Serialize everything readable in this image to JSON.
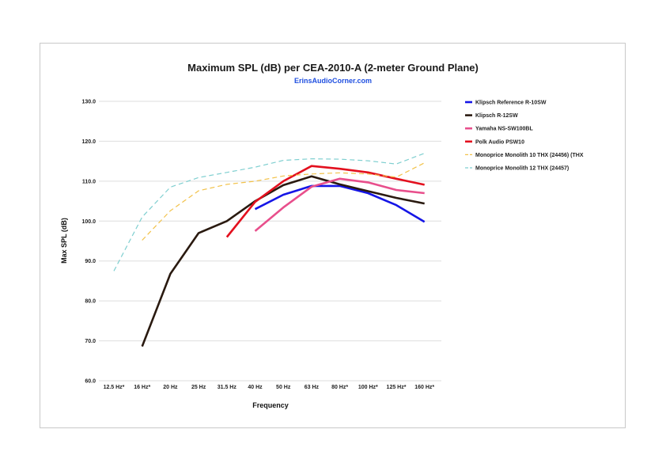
{
  "chart_data": {
    "type": "line",
    "title": "Maximum SPL (dB) per CEA-2010-A (2-meter Ground Plane)",
    "subtitle": "ErinsAudioCorner.com",
    "xlabel": "Frequency",
    "ylabel": "Max SPL (dB)",
    "ylim": [
      60,
      130
    ],
    "yticks": [
      "60.0",
      "70.0",
      "80.0",
      "90.0",
      "100.0",
      "110.0",
      "120.0",
      "130.0"
    ],
    "categories": [
      "12.5 Hz*",
      "16 Hz*",
      "20 Hz",
      "25 Hz",
      "31.5 Hz",
      "40 Hz",
      "50 Hz",
      "63 Hz",
      "80 Hz*",
      "100 Hz*",
      "125 Hz*",
      "160 Hz*"
    ],
    "legend_position": "right",
    "series": [
      {
        "name": "Klipsch Reference R-10SW",
        "color": "#1515e6",
        "dash": false,
        "values": [
          null,
          null,
          null,
          null,
          null,
          103.0,
          106.6,
          108.8,
          108.8,
          107.0,
          104.0,
          99.8
        ]
      },
      {
        "name": "Klipsch R-12SW",
        "color": "#2a1a10",
        "dash": false,
        "values": [
          null,
          68.6,
          86.8,
          97.0,
          100.0,
          105.0,
          109.0,
          111.2,
          109.2,
          107.5,
          105.8,
          104.4
        ]
      },
      {
        "name": "Yamaha NS-SW100BL",
        "color": "#e84f8c",
        "dash": false,
        "values": [
          null,
          null,
          null,
          null,
          null,
          97.5,
          103.4,
          108.6,
          110.6,
          109.7,
          107.8,
          107.0
        ]
      },
      {
        "name": "Polk Audio PSW10",
        "color": "#e3101e",
        "dash": false,
        "values": [
          null,
          null,
          null,
          null,
          96.0,
          104.8,
          110.0,
          113.8,
          113.1,
          112.2,
          110.6,
          109.1
        ]
      },
      {
        "name": "Monoprice Monolith 10 THX (24456) (THX",
        "color": "#f2c24a",
        "dash": true,
        "values": [
          null,
          95.2,
          102.6,
          107.6,
          109.2,
          110.0,
          111.3,
          111.8,
          112.1,
          111.8,
          111.0,
          114.6
        ]
      },
      {
        "name": "Monoprice Monolith 12 THX (24457)",
        "color": "#7fcfd0",
        "dash": true,
        "values": [
          87.5,
          101.0,
          108.5,
          110.9,
          112.2,
          113.5,
          115.2,
          115.6,
          115.5,
          115.1,
          114.3,
          117.0
        ]
      }
    ]
  }
}
